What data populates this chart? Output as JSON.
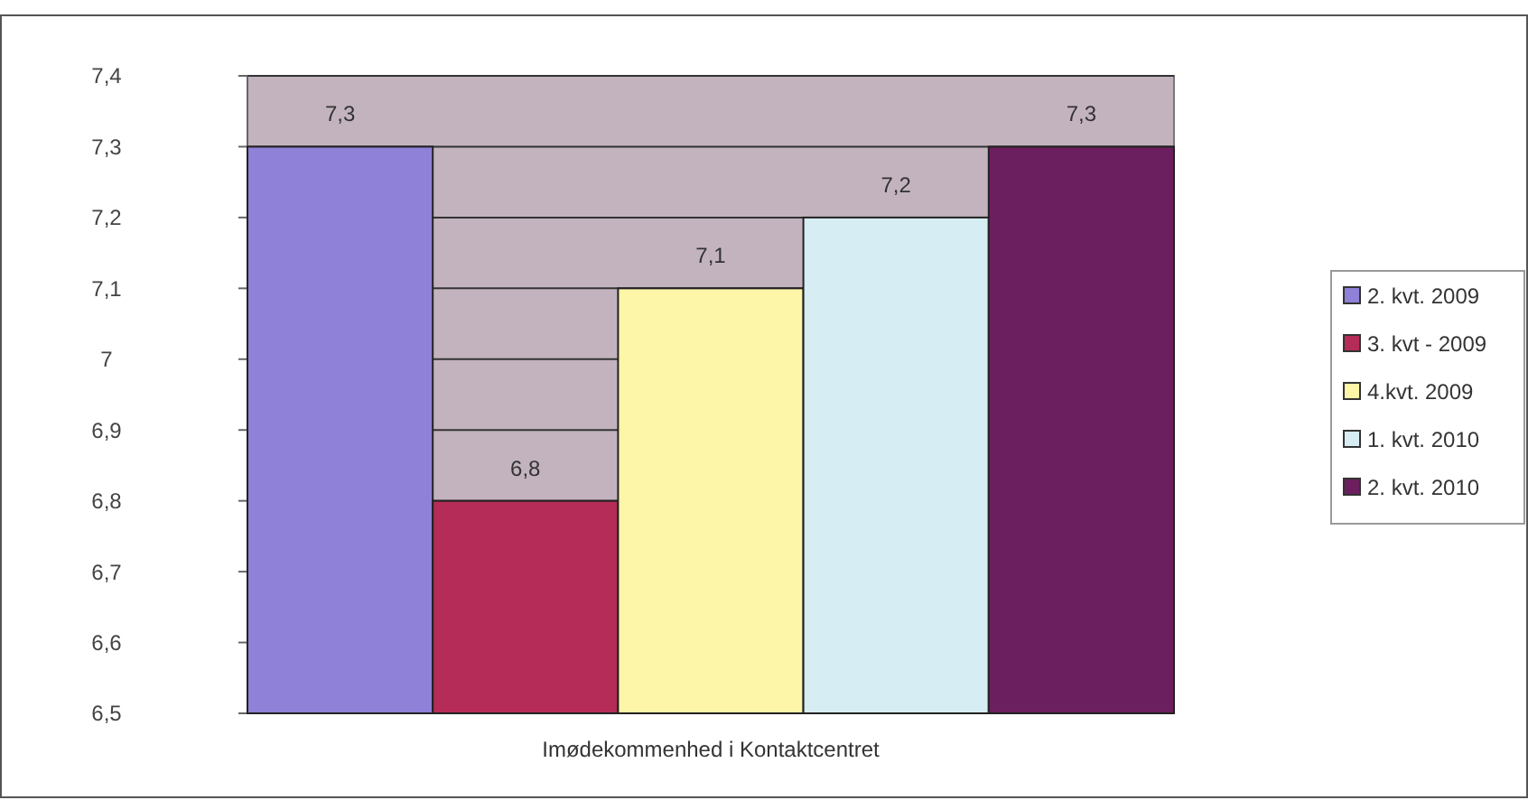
{
  "chart_data": {
    "type": "bar",
    "xlabel": "Imødekommenhed i Kontaktcentret",
    "categories": [
      null
    ],
    "series": [
      {
        "name": "2. kvt. 2009",
        "color": "#8f80d8",
        "values": [
          7.3
        ],
        "value_labels": [
          "7,3"
        ]
      },
      {
        "name": "3. kvt - 2009",
        "color": "#b52c58",
        "values": [
          6.8
        ],
        "value_labels": [
          "6,8"
        ]
      },
      {
        "name": "4.kvt. 2009",
        "color": "#fdf5a8",
        "values": [
          7.1
        ],
        "value_labels": [
          "7,1"
        ]
      },
      {
        "name": "1. kvt. 2010",
        "color": "#d5edf3",
        "values": [
          7.2
        ],
        "value_labels": [
          "7,2"
        ]
      },
      {
        "name": "2. kvt. 2010",
        "color": "#6c1f5e",
        "values": [
          7.3
        ],
        "value_labels": [
          "7,3"
        ]
      }
    ],
    "ylim": [
      6.5,
      7.4
    ],
    "yticks": [
      {
        "value": 6.5,
        "label": "6,5"
      },
      {
        "value": 6.6,
        "label": "6,6"
      },
      {
        "value": 6.7,
        "label": "6,7"
      },
      {
        "value": 6.8,
        "label": "6,8"
      },
      {
        "value": 6.9,
        "label": "6,9"
      },
      7,
      {
        "value": 7.1,
        "label": "7,1"
      },
      {
        "value": 7.2,
        "label": "7,2"
      },
      {
        "value": 7.3,
        "label": "7,3"
      },
      {
        "value": 7.4,
        "label": "7,4"
      }
    ],
    "grid": "y",
    "legend": "right"
  }
}
